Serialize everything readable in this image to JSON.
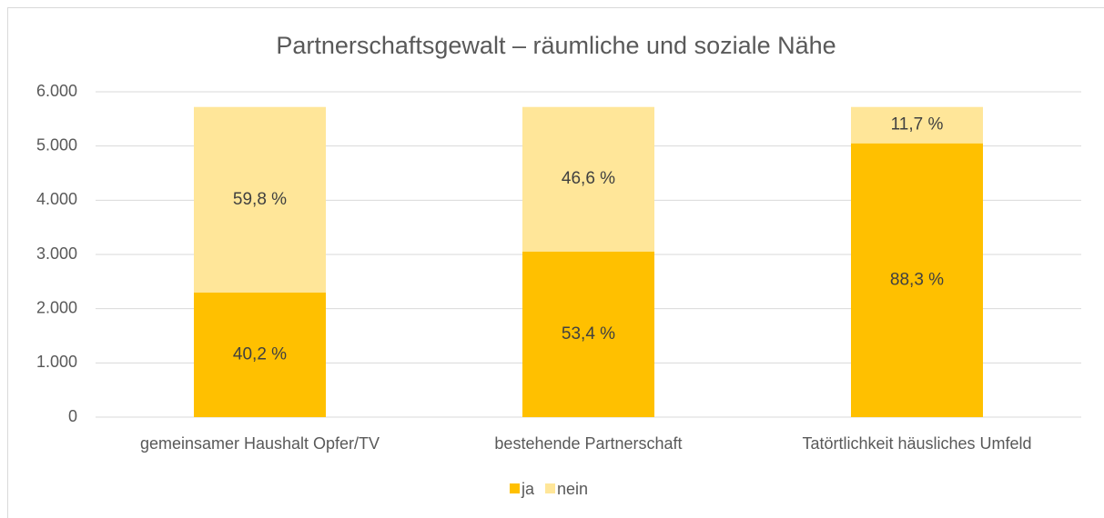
{
  "chart_data": {
    "type": "stacked_bar",
    "title": "Partnerschaftsgewalt – räumliche und soziale Nähe",
    "categories": [
      "gemeinsamer Haushalt Opfer/TV",
      "bestehende Partnerschaft",
      "Tatörtlichkeit häusliches Umfeld"
    ],
    "series": [
      {
        "name": "ja",
        "color": "#ffc000",
        "values": [
          2300,
          3055,
          5050
        ],
        "value_labels": [
          "40,2 %",
          "53,4 %",
          "88,3 %"
        ]
      },
      {
        "name": "nein",
        "color": "#ffe699",
        "values": [
          3420,
          2665,
          670
        ],
        "value_labels": [
          "59,8 %",
          "46,6 %",
          "11,7 %"
        ]
      }
    ],
    "ylim": [
      0,
      6000
    ],
    "yticks": [
      0,
      {
        "value": 1000,
        "label": "1.000"
      },
      {
        "value": 2000,
        "label": "2.000"
      },
      {
        "value": 3000,
        "label": "3.000"
      },
      {
        "value": 4000,
        "label": "4.000"
      },
      {
        "value": 5000,
        "label": "5.000"
      },
      {
        "value": 6000,
        "label": "6.000"
      }
    ],
    "grid": true,
    "legend": "bottom"
  }
}
